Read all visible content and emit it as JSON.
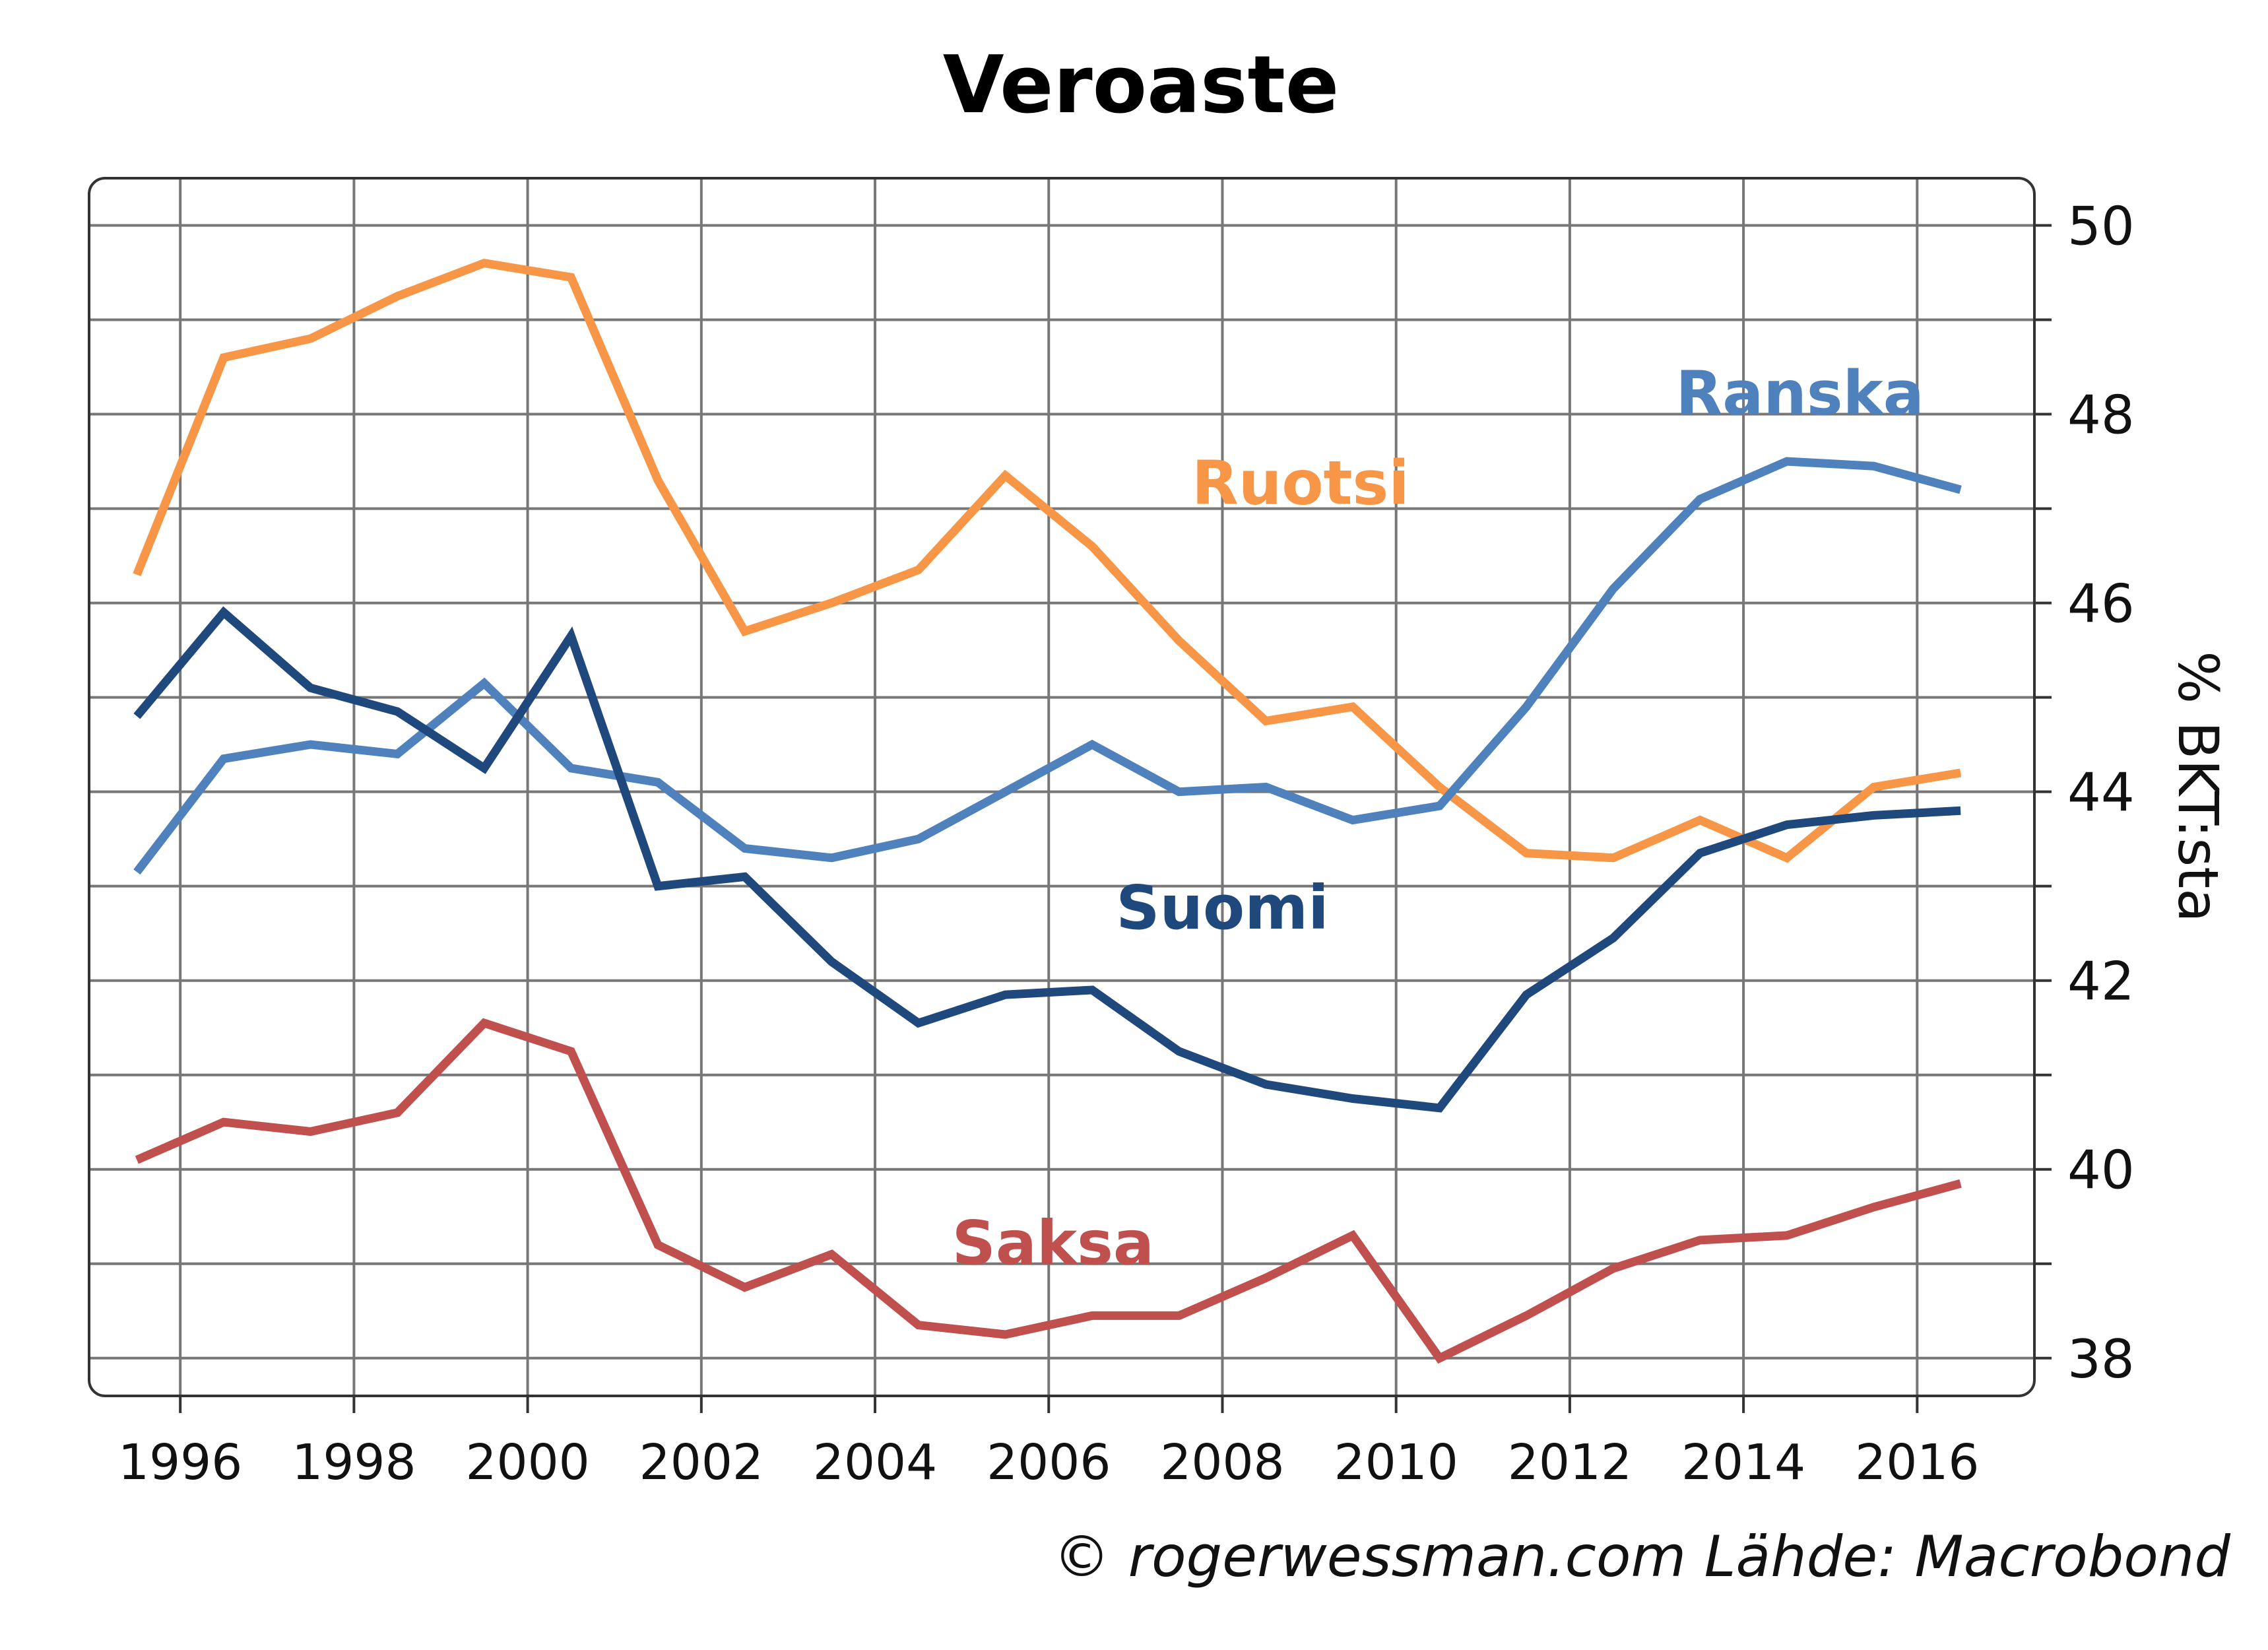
{
  "chart_data": {
    "type": "line",
    "title": "Veroaste",
    "ylabel": "% BKT:sta",
    "xlabel": "",
    "xlim": [
      1994.95,
      2017.35
    ],
    "ylim": [
      37.6,
      50.5
    ],
    "y_ticks": [
      38,
      40,
      42,
      44,
      46,
      48,
      50
    ],
    "y_minor_ticks": [
      39,
      41,
      43,
      45,
      47,
      49
    ],
    "x_ticks": [
      1996,
      1998,
      2000,
      2002,
      2004,
      2006,
      2008,
      2010,
      2012,
      2014,
      2016
    ],
    "grid": true,
    "y_axis_side": "right",
    "x": [
      1995.5,
      1996.5,
      1997.5,
      1998.5,
      1999.5,
      2000.5,
      2001.5,
      2002.5,
      2003.5,
      2004.5,
      2005.5,
      2006.5,
      2007.5,
      2008.5,
      2009.5,
      2010.5,
      2011.5,
      2012.5,
      2013.5,
      2014.5,
      2015.5,
      2016.5
    ],
    "series": [
      {
        "name": "Ruotsi",
        "color": "#F79646",
        "label_position": [
          2008.9,
          47.05
        ],
        "values": [
          46.3,
          48.6,
          48.8,
          49.25,
          49.6,
          49.45,
          47.3,
          45.7,
          46.0,
          46.35,
          47.35,
          46.6,
          45.6,
          44.75,
          44.9,
          44.05,
          43.35,
          43.3,
          43.7,
          43.3,
          44.05,
          44.2
        ]
      },
      {
        "name": "Ranska",
        "color": "#4F81BD",
        "label_position": [
          2014.65,
          48.0
        ],
        "values": [
          43.15,
          44.35,
          44.5,
          44.4,
          45.15,
          44.25,
          44.1,
          43.4,
          43.3,
          43.5,
          44.0,
          44.5,
          44.0,
          44.05,
          43.7,
          43.85,
          44.9,
          46.15,
          47.1,
          47.5,
          47.45,
          47.2
        ]
      },
      {
        "name": "Suomi",
        "color": "#1F497D",
        "label_position": [
          2008.0,
          42.55
        ],
        "values": [
          44.8,
          45.9,
          45.1,
          44.85,
          44.25,
          45.65,
          43.0,
          43.1,
          42.2,
          41.55,
          41.85,
          41.9,
          41.25,
          40.9,
          40.75,
          40.65,
          41.85,
          42.45,
          43.35,
          43.65,
          43.75,
          43.8
        ]
      },
      {
        "name": "Saksa",
        "color": "#C0504D",
        "label_position": [
          2006.05,
          39.0
        ],
        "values": [
          40.1,
          40.5,
          40.4,
          40.6,
          41.55,
          41.25,
          39.2,
          38.75,
          39.1,
          38.35,
          38.25,
          38.45,
          38.45,
          38.85,
          39.3,
          38.0,
          38.45,
          38.95,
          39.25,
          39.3,
          39.6,
          39.85
        ]
      }
    ],
    "source": "© rogerwessman.com Lähde: Macrobond"
  }
}
